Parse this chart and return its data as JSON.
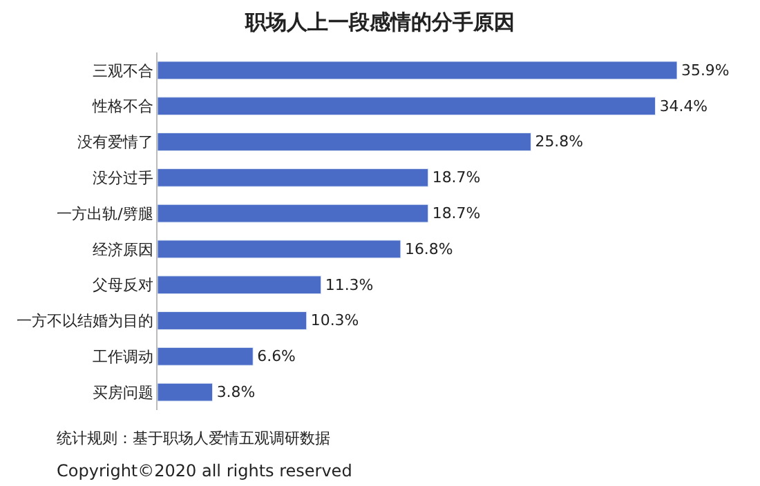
{
  "chart_data": {
    "type": "bar",
    "orientation": "horizontal",
    "title": "职场人上一段感情的分手原因",
    "categories": [
      "三观不合",
      "性格不合",
      "没有爱情了",
      "没分过手",
      "一方出轨/劈腿",
      "经济原因",
      "父母反对",
      "一方不以结婚为目的",
      "工作调动",
      "买房问题"
    ],
    "values": [
      35.9,
      34.4,
      25.8,
      18.7,
      18.7,
      16.8,
      11.3,
      10.3,
      6.6,
      3.8
    ],
    "value_labels": [
      "35.9%",
      "34.4%",
      "25.8%",
      "18.7%",
      "18.7%",
      "16.8%",
      "11.3%",
      "10.3%",
      "6.6%",
      "3.8%"
    ],
    "color": "#4a6cc6",
    "annotations": [
      "统计规则：基于职场人爱情五观调研数据",
      "Copyright©2020 all rights reserved"
    ]
  }
}
